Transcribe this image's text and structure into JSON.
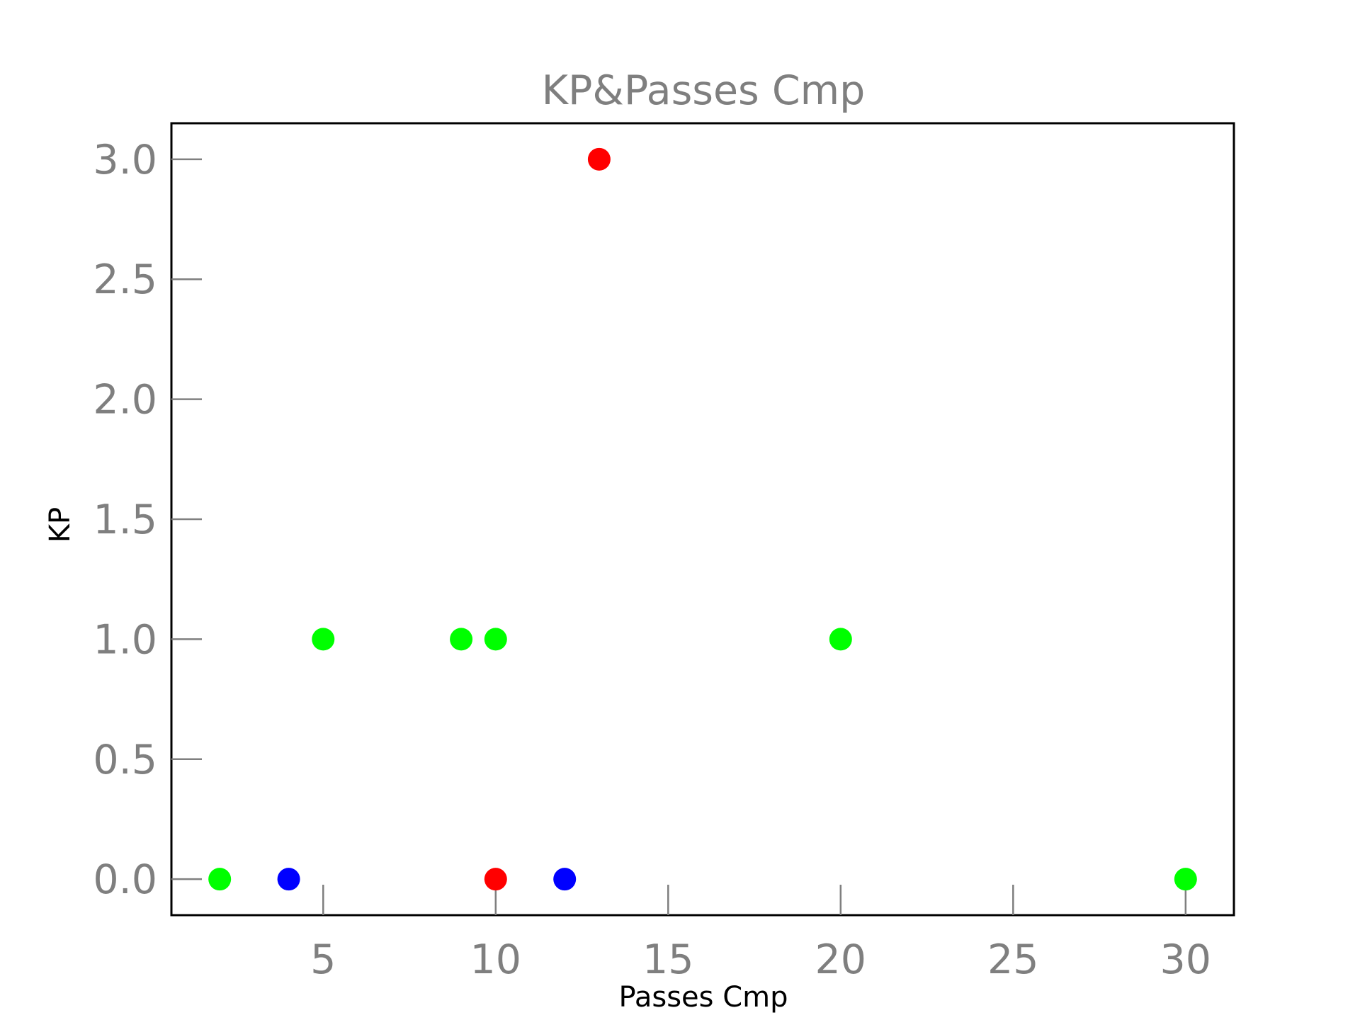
{
  "chart_data": {
    "type": "scatter",
    "title": "KP&Passes Cmp",
    "xlabel": "Passes Cmp",
    "ylabel": "KP",
    "xlim": [
      0.6,
      31.4
    ],
    "ylim": [
      -0.15,
      3.15
    ],
    "xticks": [
      5,
      10,
      15,
      20,
      25,
      30
    ],
    "yticks": [
      0.0,
      0.5,
      1.0,
      1.5,
      2.0,
      2.5,
      3.0
    ],
    "xtick_labels": [
      "5",
      "10",
      "15",
      "20",
      "25",
      "30"
    ],
    "ytick_labels": [
      "0.0",
      "0.5",
      "1.0",
      "1.5",
      "2.0",
      "2.5",
      "3.0"
    ],
    "grid": false,
    "points": [
      {
        "x": 2,
        "y": 0,
        "color": "#00ff00"
      },
      {
        "x": 4,
        "y": 0,
        "color": "#0000ff"
      },
      {
        "x": 5,
        "y": 1,
        "color": "#00ff00"
      },
      {
        "x": 9,
        "y": 1,
        "color": "#00ff00"
      },
      {
        "x": 10,
        "y": 1,
        "color": "#00ff00"
      },
      {
        "x": 10,
        "y": 0,
        "color": "#ff0000"
      },
      {
        "x": 12,
        "y": 0,
        "color": "#0000ff"
      },
      {
        "x": 13,
        "y": 3,
        "color": "#ff0000"
      },
      {
        "x": 20,
        "y": 1,
        "color": "#00ff00"
      },
      {
        "x": 30,
        "y": 0,
        "color": "#00ff00"
      }
    ]
  }
}
